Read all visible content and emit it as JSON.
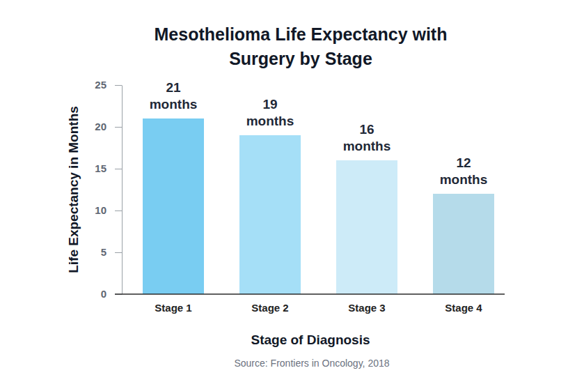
{
  "chart_data": {
    "type": "bar",
    "title": [
      "Mesothelioma Life Expectancy with",
      "Surgery by Stage"
    ],
    "x_label": "Stage of Diagnosis",
    "y_label": "Life Expectancy in Months",
    "source": "Source: Frontiers in Oncology, 2018",
    "categories": [
      "Stage 1",
      "Stage 2",
      "Stage 3",
      "Stage 4"
    ],
    "values": [
      21,
      19,
      16,
      12
    ],
    "value_labels": [
      "21 months",
      "19 months",
      "16 months",
      "12 months"
    ],
    "data_labels": true,
    "colors": [
      "#79cdf2",
      "#a5dff7",
      "#cdebf8",
      "#b5dbea"
    ],
    "ylim": [
      0,
      25
    ],
    "yticks": [
      0,
      5,
      10,
      15,
      20,
      25
    ],
    "grid": false
  }
}
